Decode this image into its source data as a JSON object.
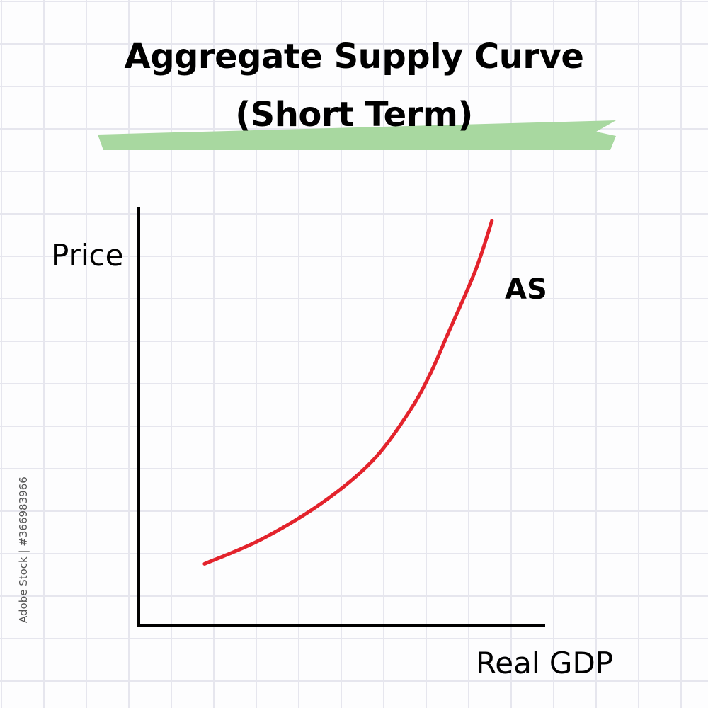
{
  "title": {
    "line1": "Aggregate Supply Curve",
    "line2": "(Short Term)"
  },
  "colors": {
    "curve": "#e3232c",
    "highlight": "#a8d8a0",
    "axis": "#000000",
    "grid": "#e6e6ee"
  },
  "chart_data": {
    "type": "line",
    "xlabel": "Real GDP",
    "ylabel": "Price",
    "series": [
      {
        "name": "AS",
        "x": [
          0.16,
          0.3,
          0.45,
          0.57,
          0.66,
          0.71,
          0.75,
          0.82,
          0.86
        ],
        "y": [
          0.15,
          0.21,
          0.3,
          0.4,
          0.52,
          0.61,
          0.7,
          0.86,
          0.98
        ]
      }
    ],
    "xlim": [
      0,
      1
    ],
    "ylim": [
      0,
      1
    ],
    "grid": false,
    "ticks": false
  },
  "watermark": {
    "stock_id": "Adobe Stock | #366983966"
  }
}
